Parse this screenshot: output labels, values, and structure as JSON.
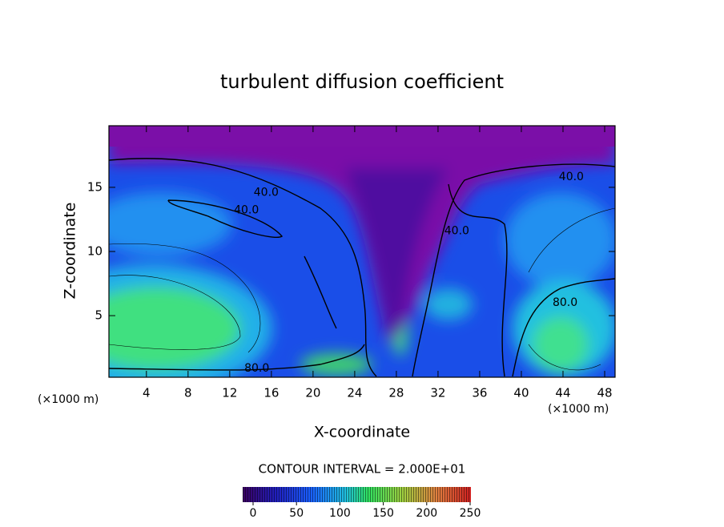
{
  "chart_data": {
    "type": "contour",
    "title": "turbulent diffusion coefficient",
    "x_label": "X-coordinate",
    "y_label": "Z-coordinate",
    "x_unit_labels": [
      "(×1000 m)",
      "(×1000 m)"
    ],
    "xlim": [
      0.4,
      49
    ],
    "ylim": [
      0.2,
      19.8
    ],
    "xticks": [
      4,
      8,
      12,
      16,
      20,
      24,
      28,
      32,
      36,
      40,
      44,
      48
    ],
    "yticks": [
      5,
      10,
      15
    ],
    "contour_labels": [
      {
        "text": "40.0",
        "x": 15.5,
        "y": 14.6
      },
      {
        "text": "40.0",
        "x": 13.6,
        "y": 13.2
      },
      {
        "text": "80.0",
        "x": 14.6,
        "y": 0.9
      },
      {
        "text": "40.0",
        "x": 44.8,
        "y": 15.8
      },
      {
        "text": "40.0",
        "x": 33.8,
        "y": 11.6
      },
      {
        "text": "80.0",
        "x": 44.2,
        "y": 6.0
      }
    ],
    "contour_interval_label": "CONTOUR INTERVAL = 2.000E+01",
    "colorbar": {
      "lim": [
        0,
        250
      ],
      "ticks": [
        0,
        50,
        100,
        150,
        200,
        250
      ]
    }
  }
}
